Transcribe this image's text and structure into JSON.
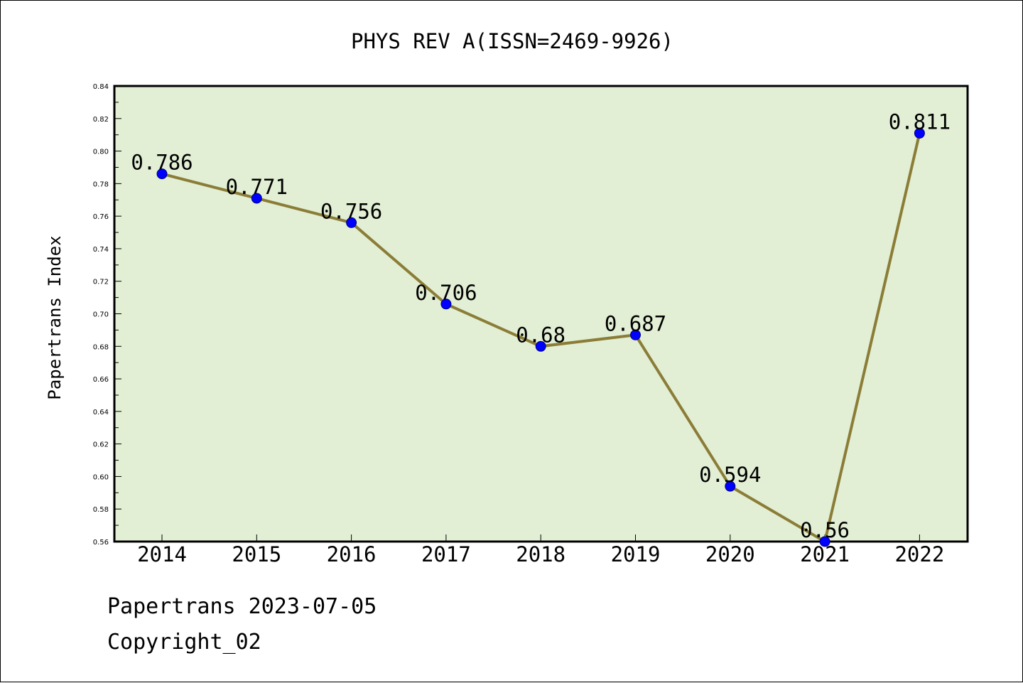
{
  "chart_data": {
    "type": "line",
    "title": "PHYS REV A(ISSN=2469-9926)",
    "xlabel": "",
    "ylabel": "Papertrans Index",
    "categories": [
      "2014",
      "2015",
      "2016",
      "2017",
      "2018",
      "2019",
      "2020",
      "2021",
      "2022"
    ],
    "series": [
      {
        "values": [
          0.786,
          0.771,
          0.756,
          0.706,
          0.68,
          0.687,
          0.594,
          0.56,
          0.811
        ],
        "data_labels": [
          "0.786",
          "0.771",
          "0.756",
          "0.706",
          "0.68",
          "0.687",
          "0.594",
          "0.56",
          "0.811"
        ]
      }
    ],
    "ylim": [
      0.56,
      0.84
    ],
    "yticks": [
      "0.56",
      "0.58",
      "0.60",
      "0.62",
      "0.64",
      "0.66",
      "0.68",
      "0.70",
      "0.72",
      "0.74",
      "0.76",
      "0.78",
      "0.80",
      "0.82",
      "0.84"
    ],
    "grid": false,
    "legend": "none",
    "colors": {
      "plot_background": "#e2efd5",
      "line": "#8b7d37",
      "marker": "#0000ff",
      "marker_edge": "#00007a",
      "axis": "#000000"
    }
  },
  "footer": {
    "line1": "Papertrans 2023-07-05",
    "line2": "Copyright_02"
  }
}
